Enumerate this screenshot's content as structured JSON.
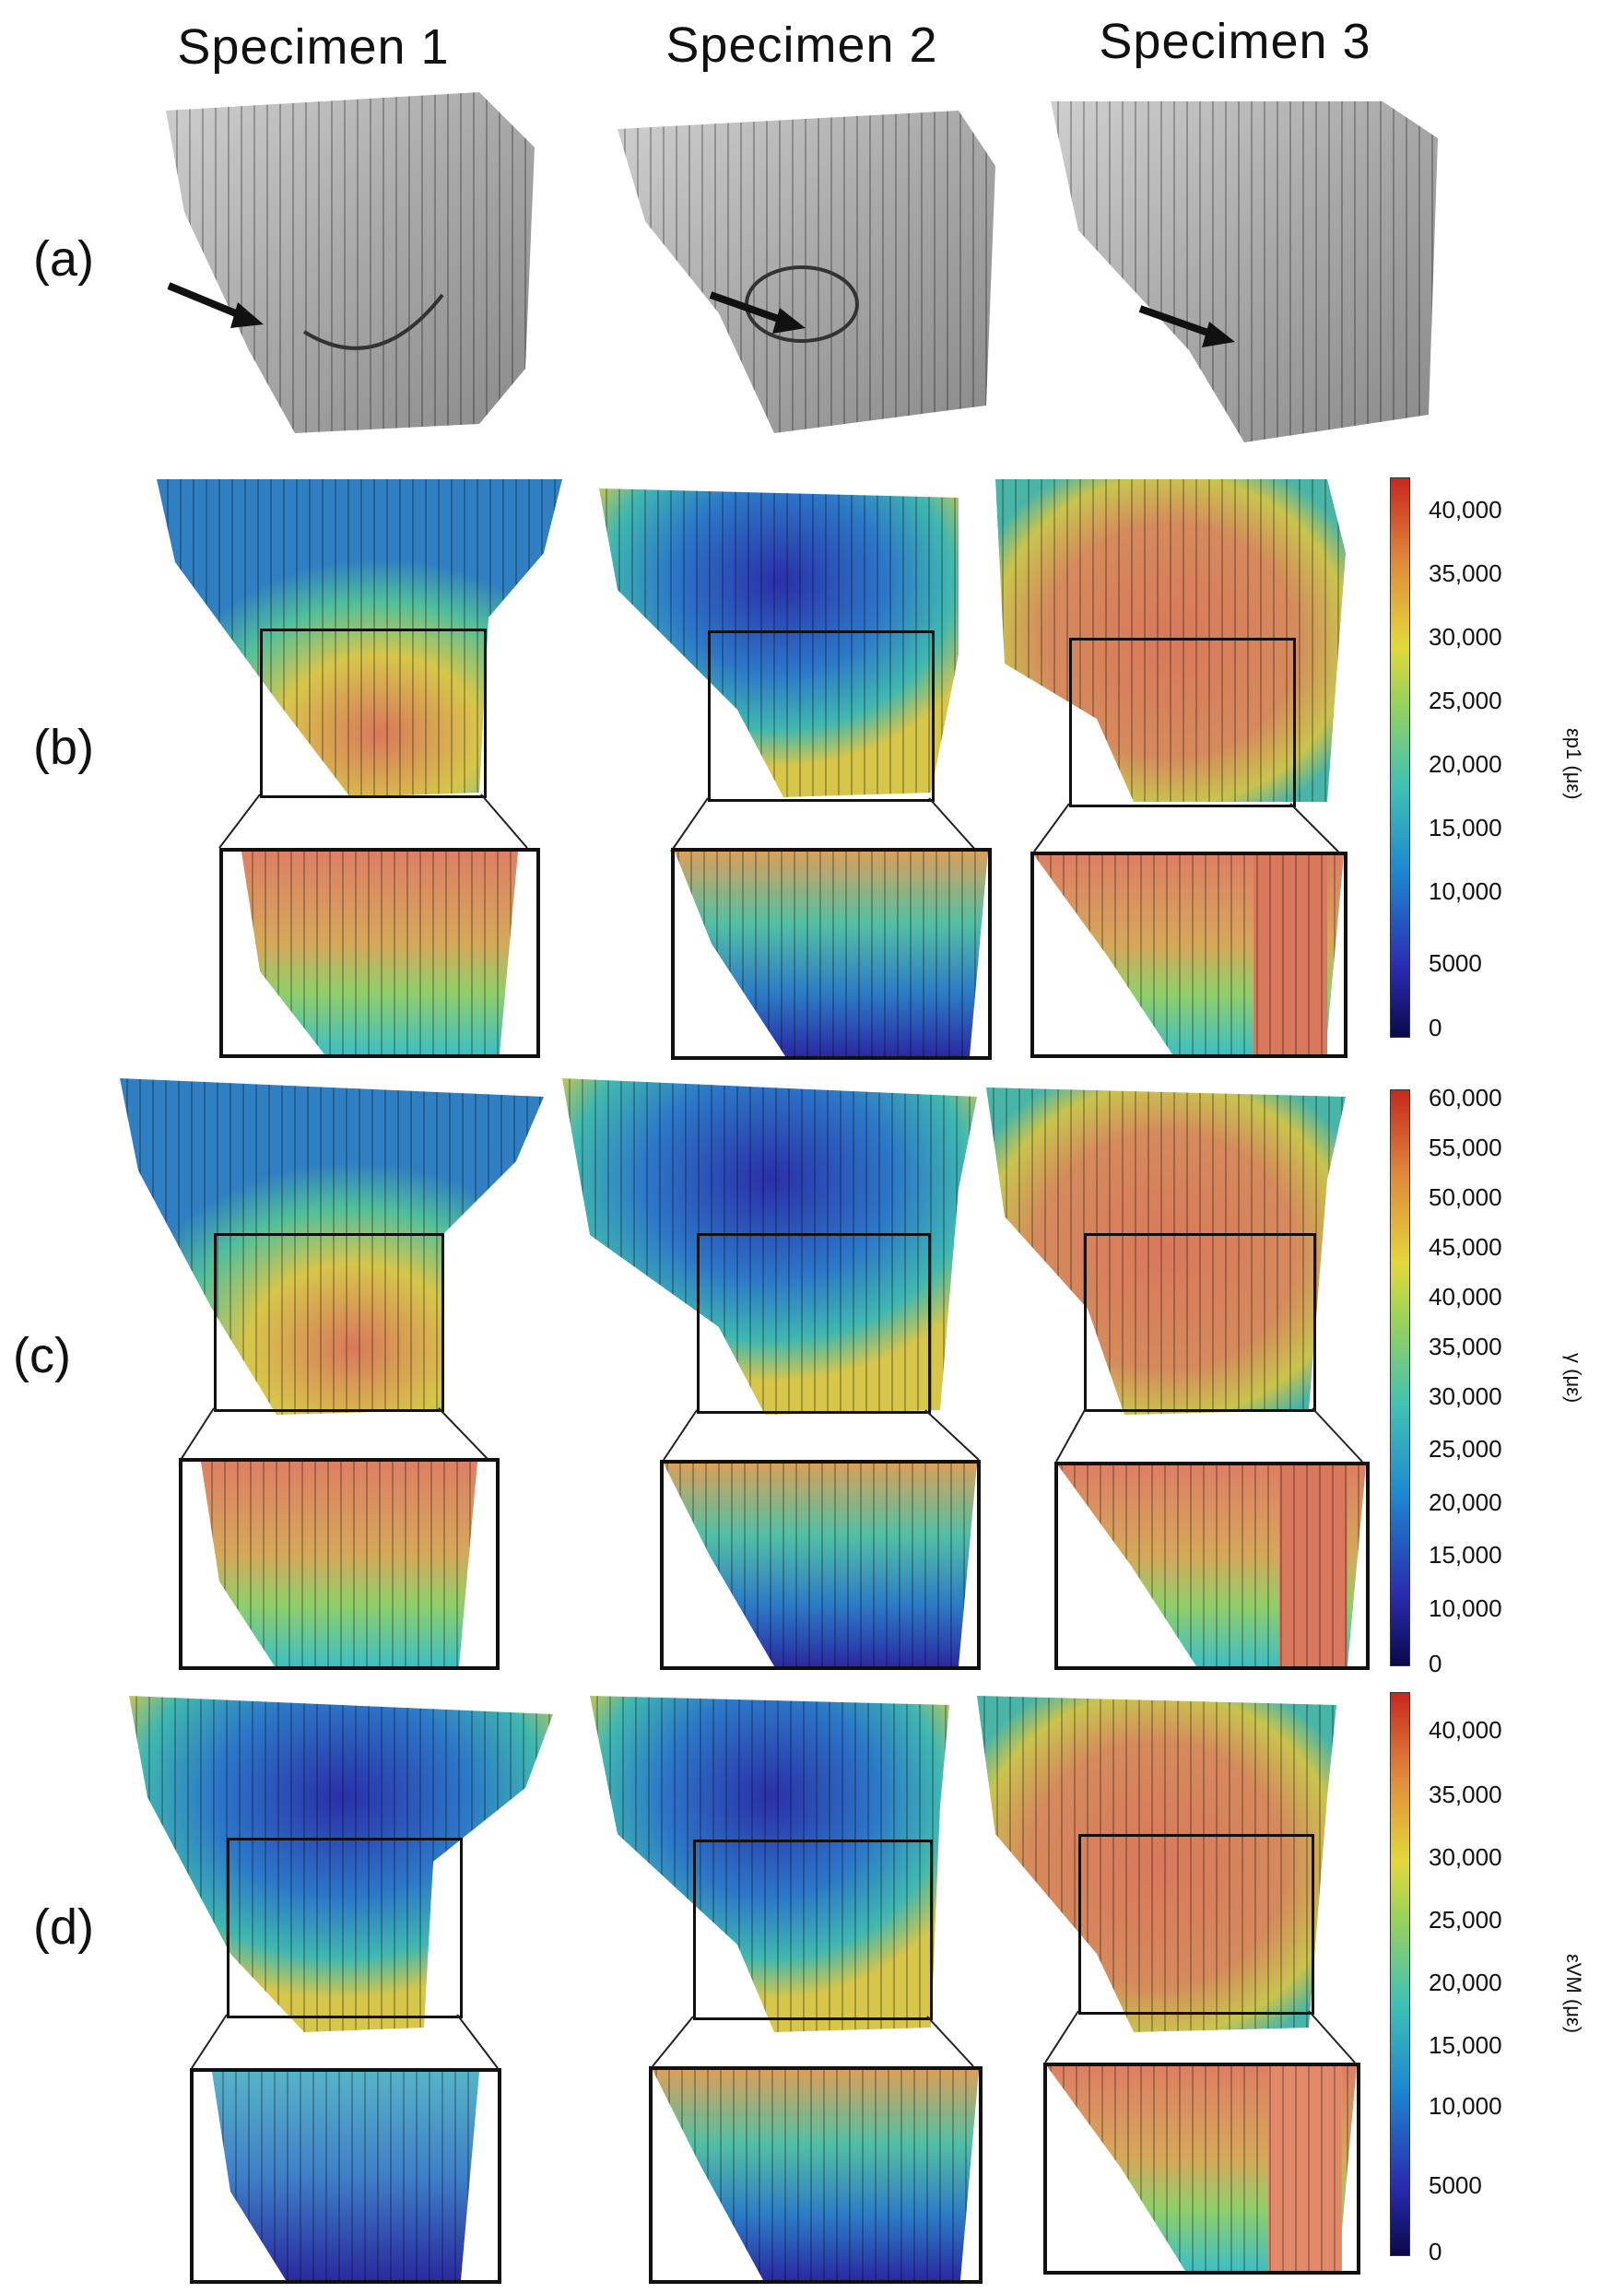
{
  "columns": [
    "Specimen 1",
    "Specimen 2",
    "Specimen 3"
  ],
  "rows": [
    "(a)",
    "(b)",
    "(c)",
    "(d)"
  ],
  "colorbars": [
    {
      "title": "εp1 (με)",
      "ticks": [
        "40,000",
        "35,000",
        "30,000",
        "25,000",
        "20,000",
        "15,000",
        "10,000",
        "5000",
        "0"
      ]
    },
    {
      "title": "γ (με)",
      "ticks": [
        "60,000",
        "55,000",
        "50,000",
        "45,000",
        "40,000",
        "35,000",
        "30,000",
        "25,000",
        "20,000",
        "15,000",
        "10,000",
        "0"
      ]
    },
    {
      "title": "εVM (με)",
      "ticks": [
        "40,000",
        "35,000",
        "30,000",
        "25,000",
        "20,000",
        "15,000",
        "10,000",
        "5000",
        "0"
      ]
    }
  ],
  "colors": {
    "bone_gray": "#b9b9b9",
    "strain_low": "#2a2a9a",
    "strain_mid": "#3fb8b0",
    "strain_yellow": "#d7d54a",
    "strain_high": "#d9785c"
  }
}
